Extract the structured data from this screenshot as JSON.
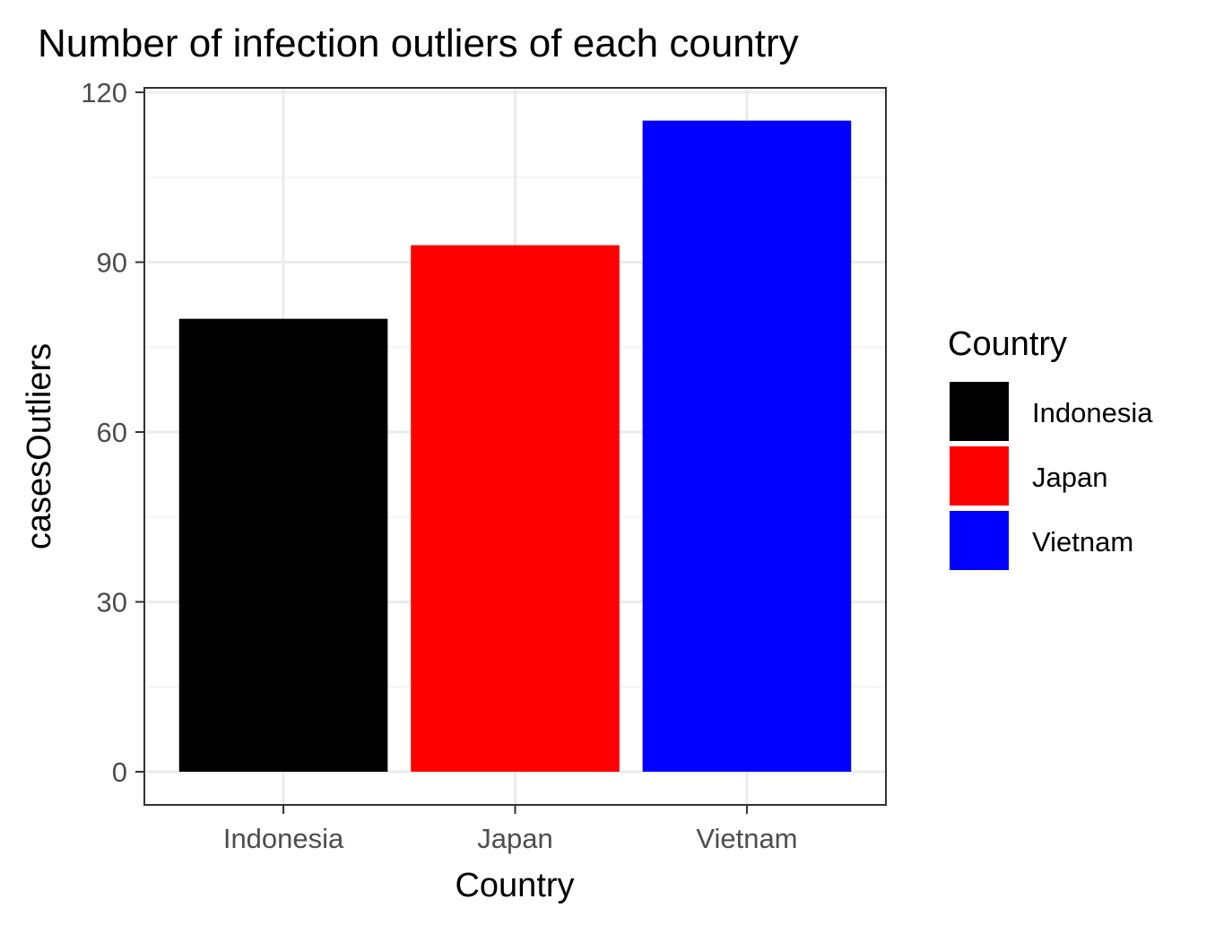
{
  "chart_data": {
    "type": "bar",
    "title": "Number of infection outliers of each country",
    "xlabel": "Country",
    "ylabel": "casesOutliers",
    "categories": [
      "Indonesia",
      "Japan",
      "Vietnam"
    ],
    "values": [
      80,
      93,
      115
    ],
    "colors": [
      "#000000",
      "#ff0000",
      "#0000ff"
    ],
    "ylim": [
      0,
      120
    ],
    "yticks": [
      0,
      30,
      60,
      90,
      120
    ],
    "grid": true,
    "legend": {
      "title": "Country",
      "placement": "right",
      "entries": [
        "Indonesia",
        "Japan",
        "Vietnam"
      ]
    }
  }
}
